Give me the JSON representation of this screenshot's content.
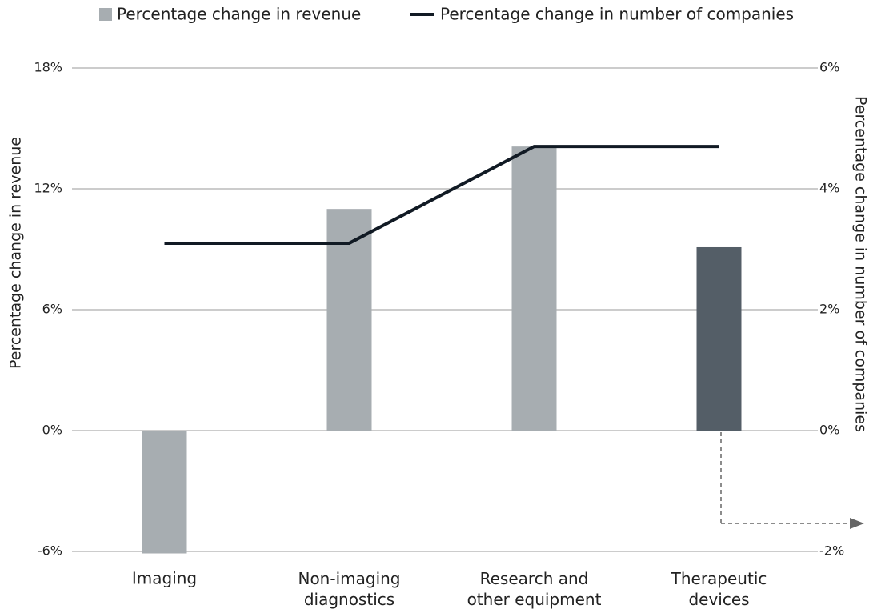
{
  "chart_data": {
    "type": "bar",
    "categories": [
      "Imaging",
      "Non-imaging\ndiagnostics",
      "Research and\nother equipment",
      "Therapeutic\ndevices"
    ],
    "series": [
      {
        "name": "Percentage change in revenue",
        "type": "bar",
        "colors": [
          "#a7adb1",
          "#a7adb1",
          "#a7adb1",
          "#545e67"
        ],
        "color": "#a7adb1",
        "values": [
          -6.1,
          11.0,
          14.1,
          9.1
        ]
      },
      {
        "name": "Percentage change in number of companies",
        "type": "line",
        "axis": "y2",
        "color": "#111a24",
        "values": [
          3.1,
          3.1,
          4.7,
          4.7
        ]
      }
    ],
    "ylabel": "Percentage change in revenue",
    "y2label": "Percentage change in number of companies",
    "ylim": [
      -6,
      18
    ],
    "yticks": [
      {
        "value": -6,
        "label": "-6%"
      },
      {
        "value": 0,
        "label": "0%"
      },
      {
        "value": 6,
        "label": "6%"
      },
      {
        "value": 12,
        "label": "12%"
      },
      {
        "value": 18,
        "label": "18%"
      }
    ],
    "y2lim": [
      -2,
      6
    ],
    "y2ticks": [
      {
        "value": -2,
        "label": "-2%"
      },
      {
        "value": 0,
        "label": "0%"
      },
      {
        "value": 2,
        "label": "2%"
      },
      {
        "value": 4,
        "label": "4%"
      },
      {
        "value": 6,
        "label": "6%"
      }
    ],
    "grid": true
  }
}
